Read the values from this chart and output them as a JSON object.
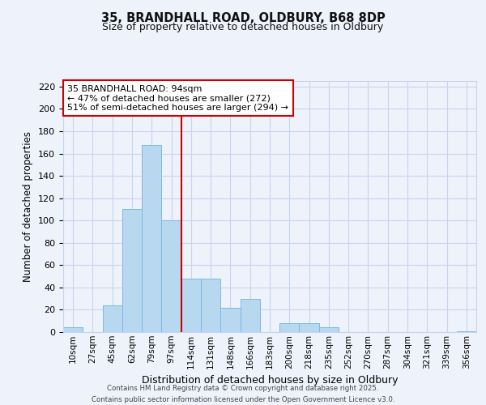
{
  "title1": "35, BRANDHALL ROAD, OLDBURY, B68 8DP",
  "title2": "Size of property relative to detached houses in Oldbury",
  "xlabel": "Distribution of detached houses by size in Oldbury",
  "ylabel": "Number of detached properties",
  "bar_labels": [
    "10sqm",
    "27sqm",
    "45sqm",
    "62sqm",
    "79sqm",
    "97sqm",
    "114sqm",
    "131sqm",
    "148sqm",
    "166sqm",
    "183sqm",
    "200sqm",
    "218sqm",
    "235sqm",
    "252sqm",
    "270sqm",
    "287sqm",
    "304sqm",
    "321sqm",
    "339sqm",
    "356sqm"
  ],
  "bar_heights": [
    4,
    0,
    24,
    110,
    168,
    100,
    48,
    48,
    22,
    30,
    0,
    8,
    8,
    4,
    0,
    0,
    0,
    0,
    0,
    0,
    1
  ],
  "bar_color": "#b8d8f0",
  "bar_edge_color": "#7ab8e8",
  "vline_x": 5.5,
  "vline_color": "#cc0000",
  "annotation_title": "35 BRANDHALL ROAD: 94sqm",
  "annotation_line1": "← 47% of detached houses are smaller (272)",
  "annotation_line2": "51% of semi-detached houses are larger (294) →",
  "annotation_box_color": "#ffffff",
  "annotation_box_edge": "#cc0000",
  "ylim": [
    0,
    225
  ],
  "yticks": [
    0,
    20,
    40,
    60,
    80,
    100,
    120,
    140,
    160,
    180,
    200,
    220
  ],
  "footnote1": "Contains HM Land Registry data © Crown copyright and database right 2025.",
  "footnote2": "Contains public sector information licensed under the Open Government Licence v3.0.",
  "bg_color": "#eef2fb",
  "grid_color": "#c8d4ee"
}
